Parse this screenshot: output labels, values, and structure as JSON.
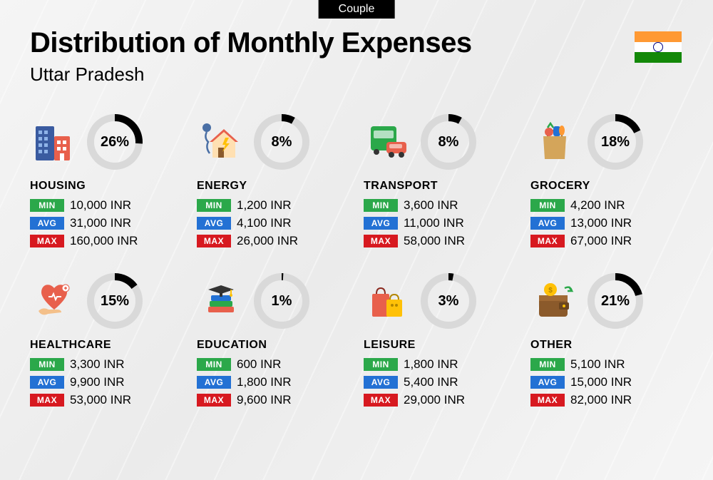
{
  "badge": "Couple",
  "title": "Distribution of Monthly Expenses",
  "subtitle": "Uttar Pradesh",
  "colors": {
    "min": "#2ba84a",
    "avg": "#2371d4",
    "max": "#d71920",
    "dial_track": "#d9d9d9",
    "dial_fill": "#000000"
  },
  "dial": {
    "stroke_width": 10,
    "radius": 34
  },
  "labels": {
    "min": "MIN",
    "avg": "AVG",
    "max": "MAX"
  },
  "currency": "INR",
  "categories": [
    {
      "key": "housing",
      "name": "HOUSING",
      "percent": 26,
      "min": "10,000",
      "avg": "31,000",
      "max": "160,000",
      "icon": "building"
    },
    {
      "key": "energy",
      "name": "ENERGY",
      "percent": 8,
      "min": "1,200",
      "avg": "4,100",
      "max": "26,000",
      "icon": "house-bolt"
    },
    {
      "key": "transport",
      "name": "TRANSPORT",
      "percent": 8,
      "min": "3,600",
      "avg": "11,000",
      "max": "58,000",
      "icon": "bus-car"
    },
    {
      "key": "grocery",
      "name": "GROCERY",
      "percent": 18,
      "min": "4,200",
      "avg": "13,000",
      "max": "67,000",
      "icon": "grocery-bag"
    },
    {
      "key": "healthcare",
      "name": "HEALTHCARE",
      "percent": 15,
      "min": "3,300",
      "avg": "9,900",
      "max": "53,000",
      "icon": "heart-hand"
    },
    {
      "key": "education",
      "name": "EDUCATION",
      "percent": 1,
      "min": "600",
      "avg": "1,800",
      "max": "9,600",
      "icon": "books-cap"
    },
    {
      "key": "leisure",
      "name": "LEISURE",
      "percent": 3,
      "min": "1,800",
      "avg": "5,400",
      "max": "29,000",
      "icon": "shopping-bags"
    },
    {
      "key": "other",
      "name": "OTHER",
      "percent": 21,
      "min": "5,100",
      "avg": "15,000",
      "max": "82,000",
      "icon": "wallet-coin"
    }
  ]
}
